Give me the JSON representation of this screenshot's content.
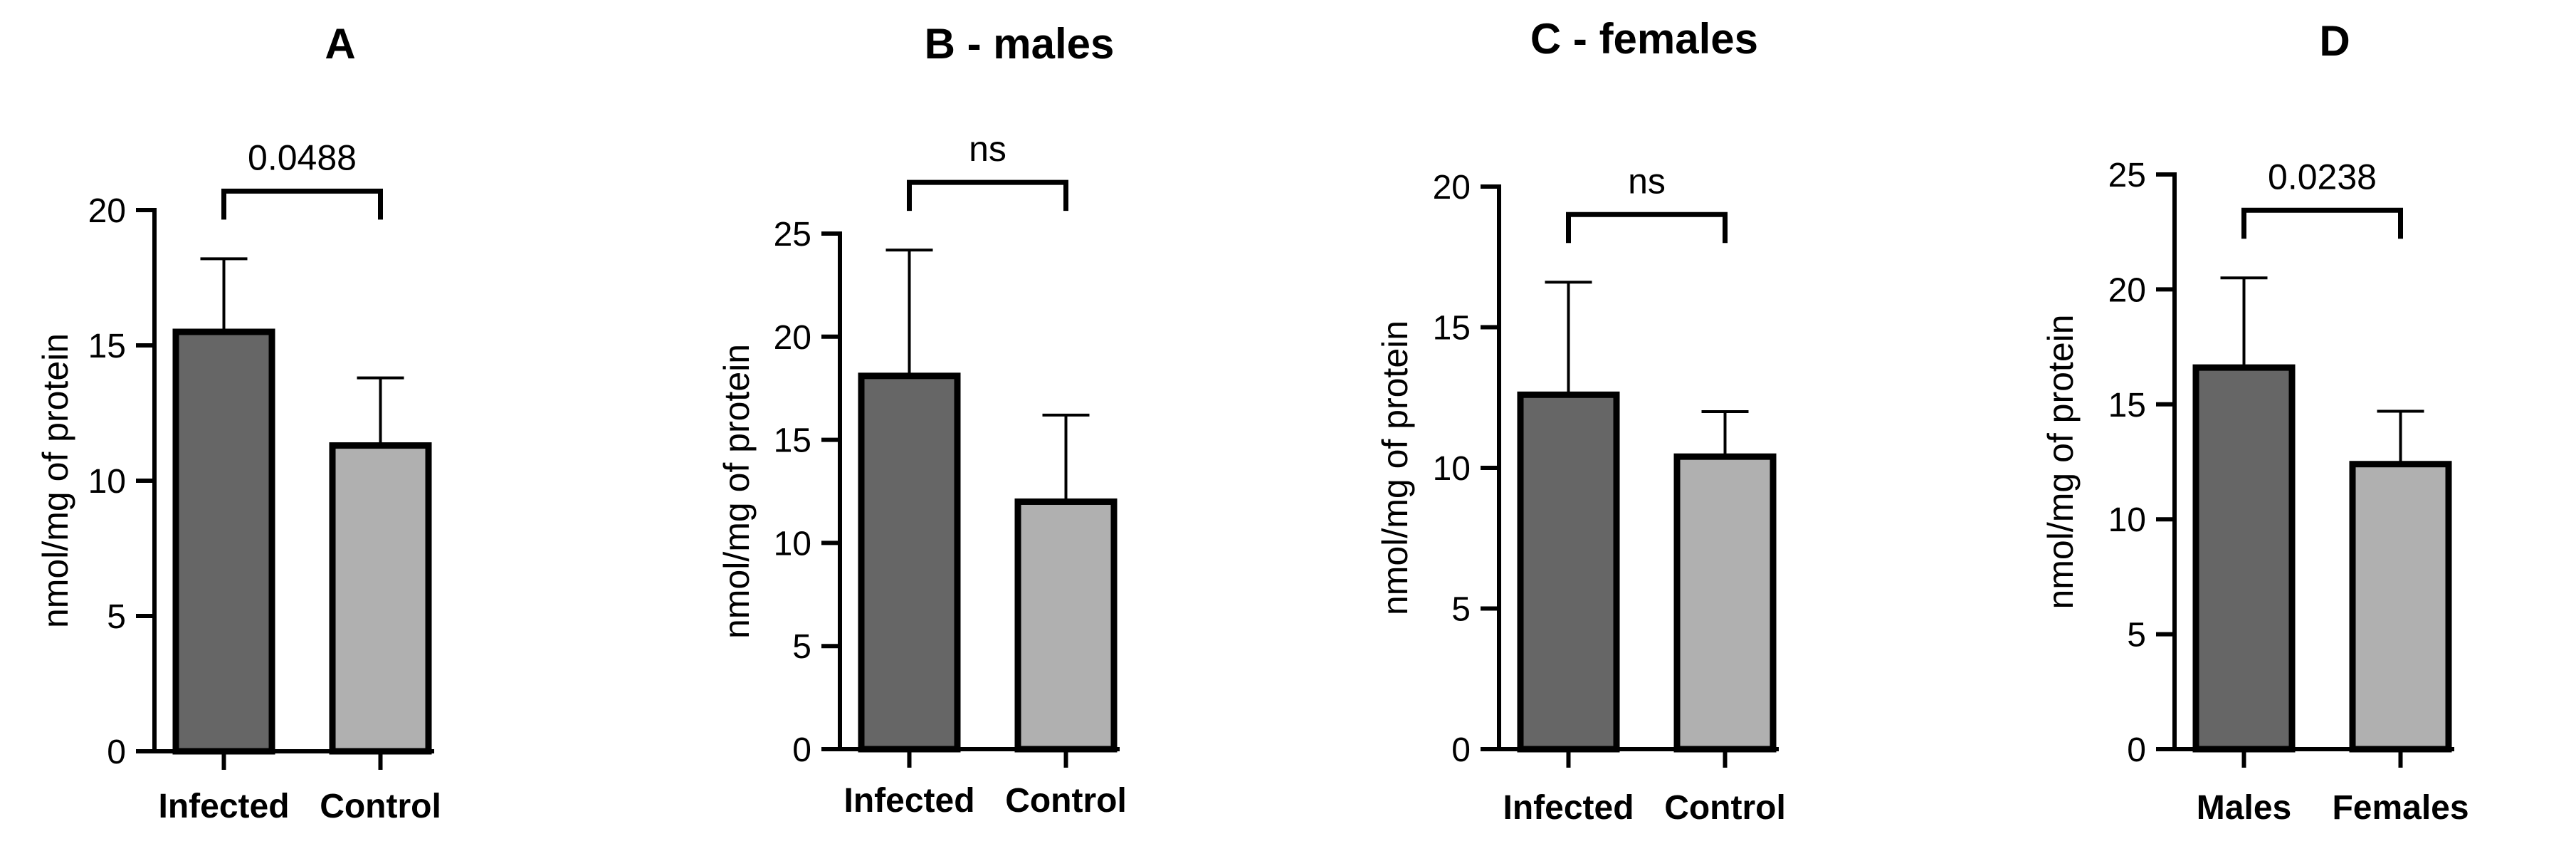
{
  "chart_data": [
    {
      "type": "bar",
      "title": "A",
      "ylabel": "nmol/mg of protein",
      "xlabel": "",
      "ylim": [
        0,
        20
      ],
      "yticks": [
        "0",
        "5",
        "10",
        "15",
        "20"
      ],
      "categories": [
        "Infected",
        "Control"
      ],
      "values": [
        15.5,
        11.3
      ],
      "errors": [
        2.7,
        2.5
      ],
      "colors": [
        "#666666",
        "#b0b0b0"
      ],
      "significance": "0.0488"
    },
    {
      "type": "bar",
      "title": "B - males",
      "ylabel": "nmol/mg of protein",
      "xlabel": "",
      "ylim": [
        0,
        25
      ],
      "yticks": [
        "0",
        "5",
        "10",
        "15",
        "20",
        "25"
      ],
      "categories": [
        "Infected",
        "Control"
      ],
      "values": [
        18.1,
        12.0
      ],
      "errors": [
        6.1,
        4.2
      ],
      "colors": [
        "#666666",
        "#b0b0b0"
      ],
      "significance": "ns"
    },
    {
      "type": "bar",
      "title": "C - females",
      "ylabel": "nmol/mg of protein",
      "xlabel": "",
      "ylim": [
        0,
        20
      ],
      "yticks": [
        "0",
        "5",
        "10",
        "15",
        "20"
      ],
      "categories": [
        "Infected",
        "Control"
      ],
      "values": [
        12.6,
        10.4
      ],
      "errors": [
        4.0,
        1.6
      ],
      "colors": [
        "#666666",
        "#b0b0b0"
      ],
      "significance": "ns"
    },
    {
      "type": "bar",
      "title": "D",
      "ylabel": "nmol/mg of protein",
      "xlabel": "",
      "ylim": [
        0,
        25
      ],
      "yticks": [
        "0",
        "5",
        "10",
        "15",
        "20",
        "25"
      ],
      "categories": [
        "Males",
        "Females"
      ],
      "values": [
        16.6,
        12.4
      ],
      "errors": [
        3.9,
        2.3
      ],
      "colors": [
        "#666666",
        "#b0b0b0"
      ],
      "significance": "0.0238"
    }
  ]
}
